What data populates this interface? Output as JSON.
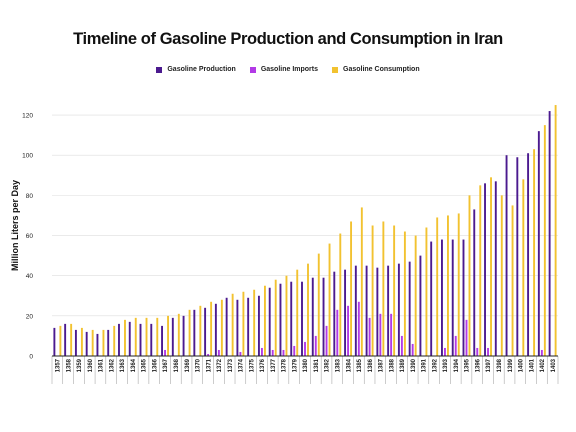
{
  "chart_data": {
    "type": "bar",
    "title": "Timeline of Gasoline Production and Consumption in Iran",
    "xlabel": "",
    "ylabel": "Million Liters per Day",
    "ylim": [
      0,
      130
    ],
    "yticks": [
      0,
      20,
      40,
      60,
      80,
      100,
      120
    ],
    "grid": true,
    "legend_position": "top-center",
    "categories": [
      "1357",
      "1358",
      "1359",
      "1360",
      "1361",
      "1362",
      "1363",
      "1364",
      "1365",
      "1366",
      "1367",
      "1368",
      "1369",
      "1370",
      "1371",
      "1372",
      "1373",
      "1374",
      "1375",
      "1376",
      "1377",
      "1378",
      "1379",
      "1380",
      "1381",
      "1382",
      "1383",
      "1384",
      "1385",
      "1386",
      "1387",
      "1388",
      "1389",
      "1390",
      "1391",
      "1392",
      "1393",
      "1394",
      "1395",
      "1396",
      "1397",
      "1398",
      "1399",
      "1400",
      "1401",
      "1402",
      "1403"
    ],
    "series": [
      {
        "name": "Gasoline Production",
        "color": "#4b1a8f",
        "values": [
          14,
          16,
          13,
          12,
          11,
          13,
          16,
          17,
          16,
          16,
          15,
          19,
          20,
          23,
          24,
          26,
          29,
          28,
          29,
          30,
          34,
          36,
          37,
          37,
          39,
          39,
          42,
          43,
          45,
          45,
          44,
          45,
          46,
          47,
          50,
          57,
          58,
          58,
          58,
          73,
          86,
          87,
          100,
          99,
          101,
          112,
          122
        ]
      },
      {
        "name": "Gasoline Imports",
        "color": "#b23ae6",
        "values": [
          0,
          0,
          0,
          0,
          0,
          0,
          0,
          0,
          0,
          0,
          3,
          0,
          0,
          0,
          1,
          3,
          0,
          2,
          0,
          4,
          3,
          3,
          5,
          7,
          10,
          15,
          23,
          25,
          27,
          19,
          21,
          21,
          10,
          6,
          0,
          0,
          4,
          10,
          18,
          4,
          4,
          0,
          0,
          0,
          0,
          3,
          0
        ]
      },
      {
        "name": "Gasoline Consumption",
        "color": "#f2c230",
        "values": [
          15,
          16,
          14,
          13,
          13,
          15,
          18,
          19,
          19,
          19,
          20,
          21,
          23,
          25,
          27,
          28,
          31,
          32,
          33,
          35,
          38,
          40,
          43,
          46,
          51,
          56,
          61,
          67,
          74,
          65,
          67,
          65,
          62,
          60,
          64,
          69,
          70,
          71,
          80,
          85,
          89,
          80,
          75,
          88,
          103,
          115,
          125
        ]
      }
    ]
  }
}
